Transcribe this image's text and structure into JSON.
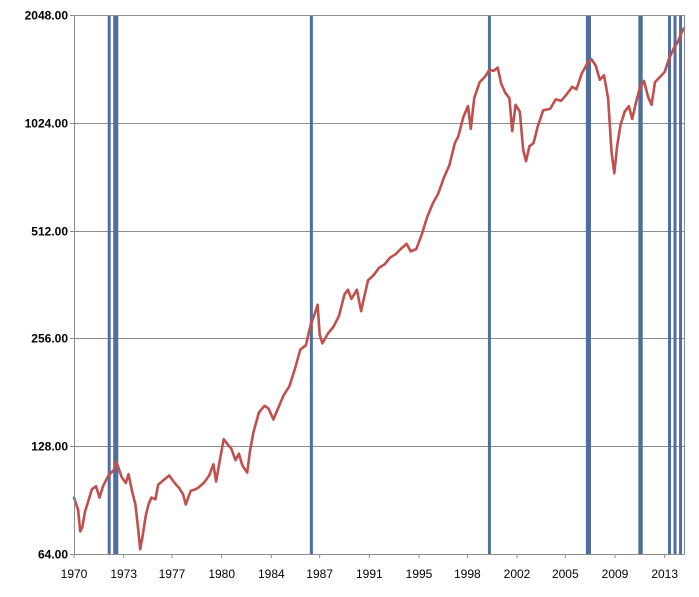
{
  "chart_data": {
    "type": "line",
    "title": "",
    "xlabel": "",
    "ylabel": "",
    "yscale": "log2",
    "ylim": [
      64,
      2048
    ],
    "xlim": [
      1970.0,
      2014.2
    ],
    "grid": {
      "horizontal": true,
      "vertical": false
    },
    "legend": "none",
    "y_tick_labels": [
      "64.00",
      "128.00",
      "256.00",
      "512.00",
      "1024.00",
      "2048.00"
    ],
    "y_tick_values": [
      64,
      128,
      256,
      512,
      1024,
      2048
    ],
    "x_tick_labels": [
      "1970",
      "1973",
      "1977",
      "1980",
      "1984",
      "1987",
      "1991",
      "1995",
      "1998",
      "2002",
      "2005",
      "2009",
      "2013"
    ],
    "x_tick_values": [
      1970.0,
      1973.6,
      1977.1,
      1980.7,
      1984.3,
      1987.8,
      1991.4,
      1995.0,
      1998.5,
      2002.1,
      2005.6,
      2009.2,
      2012.8
    ],
    "series": [
      {
        "color": "#c0504d",
        "points": [
          [
            1970.0,
            92
          ],
          [
            1970.3,
            85
          ],
          [
            1970.45,
            74
          ],
          [
            1970.6,
            76
          ],
          [
            1970.8,
            84
          ],
          [
            1971.0,
            89
          ],
          [
            1971.3,
            97
          ],
          [
            1971.6,
            99
          ],
          [
            1971.85,
            92
          ],
          [
            1972.1,
            99
          ],
          [
            1972.5,
            106
          ],
          [
            1972.9,
            110
          ],
          [
            1973.05,
            116
          ],
          [
            1973.2,
            112
          ],
          [
            1973.45,
            105
          ],
          [
            1973.75,
            101
          ],
          [
            1973.95,
            107
          ],
          [
            1974.2,
            96
          ],
          [
            1974.45,
            88
          ],
          [
            1974.65,
            75
          ],
          [
            1974.8,
            66
          ],
          [
            1974.95,
            71
          ],
          [
            1975.2,
            82
          ],
          [
            1975.4,
            88
          ],
          [
            1975.6,
            92
          ],
          [
            1975.9,
            91
          ],
          [
            1976.1,
            100
          ],
          [
            1976.5,
            103
          ],
          [
            1976.9,
            106
          ],
          [
            1977.3,
            101
          ],
          [
            1977.6,
            98
          ],
          [
            1977.9,
            94
          ],
          [
            1978.1,
            88
          ],
          [
            1978.45,
            96
          ],
          [
            1978.8,
            97
          ],
          [
            1979.0,
            98
          ],
          [
            1979.4,
            101
          ],
          [
            1979.8,
            106
          ],
          [
            1980.1,
            114
          ],
          [
            1980.3,
            102
          ],
          [
            1980.55,
            116
          ],
          [
            1980.85,
            134
          ],
          [
            1981.1,
            130
          ],
          [
            1981.4,
            126
          ],
          [
            1981.7,
            117
          ],
          [
            1981.95,
            122
          ],
          [
            1982.2,
            113
          ],
          [
            1982.55,
            108
          ],
          [
            1982.75,
            124
          ],
          [
            1983.0,
            140
          ],
          [
            1983.4,
            159
          ],
          [
            1983.8,
            166
          ],
          [
            1984.1,
            163
          ],
          [
            1984.45,
            152
          ],
          [
            1984.8,
            164
          ],
          [
            1985.2,
            178
          ],
          [
            1985.6,
            188
          ],
          [
            1986.0,
            210
          ],
          [
            1986.4,
            238
          ],
          [
            1986.8,
            245
          ],
          [
            1987.15,
            280
          ],
          [
            1987.45,
            300
          ],
          [
            1987.65,
            318
          ],
          [
            1987.8,
            262
          ],
          [
            1988.0,
            248
          ],
          [
            1988.4,
            264
          ],
          [
            1988.8,
            276
          ],
          [
            1989.2,
            296
          ],
          [
            1989.6,
            340
          ],
          [
            1989.85,
            350
          ],
          [
            1990.1,
            330
          ],
          [
            1990.5,
            350
          ],
          [
            1990.8,
            305
          ],
          [
            1991.0,
            330
          ],
          [
            1991.3,
            372
          ],
          [
            1991.7,
            384
          ],
          [
            1992.1,
            403
          ],
          [
            1992.5,
            412
          ],
          [
            1992.9,
            430
          ],
          [
            1993.3,
            440
          ],
          [
            1993.7,
            456
          ],
          [
            1994.1,
            470
          ],
          [
            1994.4,
            448
          ],
          [
            1994.8,
            455
          ],
          [
            1995.2,
            500
          ],
          [
            1995.6,
            560
          ],
          [
            1996.0,
            610
          ],
          [
            1996.4,
            650
          ],
          [
            1996.8,
            720
          ],
          [
            1997.2,
            780
          ],
          [
            1997.6,
            900
          ],
          [
            1997.85,
            940
          ],
          [
            1998.2,
            1060
          ],
          [
            1998.55,
            1140
          ],
          [
            1998.75,
            985
          ],
          [
            1999.0,
            1200
          ],
          [
            1999.4,
            1330
          ],
          [
            1999.8,
            1380
          ],
          [
            2000.1,
            1440
          ],
          [
            2000.4,
            1430
          ],
          [
            2000.7,
            1460
          ],
          [
            2000.95,
            1320
          ],
          [
            2001.25,
            1240
          ],
          [
            2001.55,
            1200
          ],
          [
            2001.75,
            970
          ],
          [
            2002.0,
            1150
          ],
          [
            2002.3,
            1100
          ],
          [
            2002.55,
            860
          ],
          [
            2002.75,
            800
          ],
          [
            2003.0,
            880
          ],
          [
            2003.3,
            900
          ],
          [
            2003.6,
            1000
          ],
          [
            2004.0,
            1110
          ],
          [
            2004.5,
            1120
          ],
          [
            2004.9,
            1190
          ],
          [
            2005.3,
            1180
          ],
          [
            2005.7,
            1230
          ],
          [
            2006.1,
            1290
          ],
          [
            2006.4,
            1270
          ],
          [
            2006.8,
            1410
          ],
          [
            2007.2,
            1500
          ],
          [
            2007.5,
            1540
          ],
          [
            2007.8,
            1480
          ],
          [
            2008.1,
            1350
          ],
          [
            2008.4,
            1390
          ],
          [
            2008.7,
            1200
          ],
          [
            2008.95,
            850
          ],
          [
            2009.15,
            740
          ],
          [
            2009.35,
            880
          ],
          [
            2009.6,
            1010
          ],
          [
            2009.9,
            1100
          ],
          [
            2010.2,
            1140
          ],
          [
            2010.45,
            1050
          ],
          [
            2010.75,
            1180
          ],
          [
            2011.0,
            1280
          ],
          [
            2011.3,
            1340
          ],
          [
            2011.6,
            1210
          ],
          [
            2011.85,
            1150
          ],
          [
            2012.1,
            1330
          ],
          [
            2012.5,
            1380
          ],
          [
            2012.8,
            1420
          ],
          [
            2013.1,
            1540
          ],
          [
            2013.45,
            1650
          ],
          [
            2013.75,
            1720
          ],
          [
            2014.0,
            1820
          ],
          [
            2014.2,
            1880
          ]
        ]
      }
    ],
    "vertical_markers": {
      "color": "#4f6ea0",
      "x": [
        1972.55,
        1972.95,
        1973.1,
        1987.2,
        2000.1,
        2007.2,
        2007.35,
        2011.0,
        2011.1,
        2013.15,
        2013.55,
        2013.95
      ]
    }
  }
}
